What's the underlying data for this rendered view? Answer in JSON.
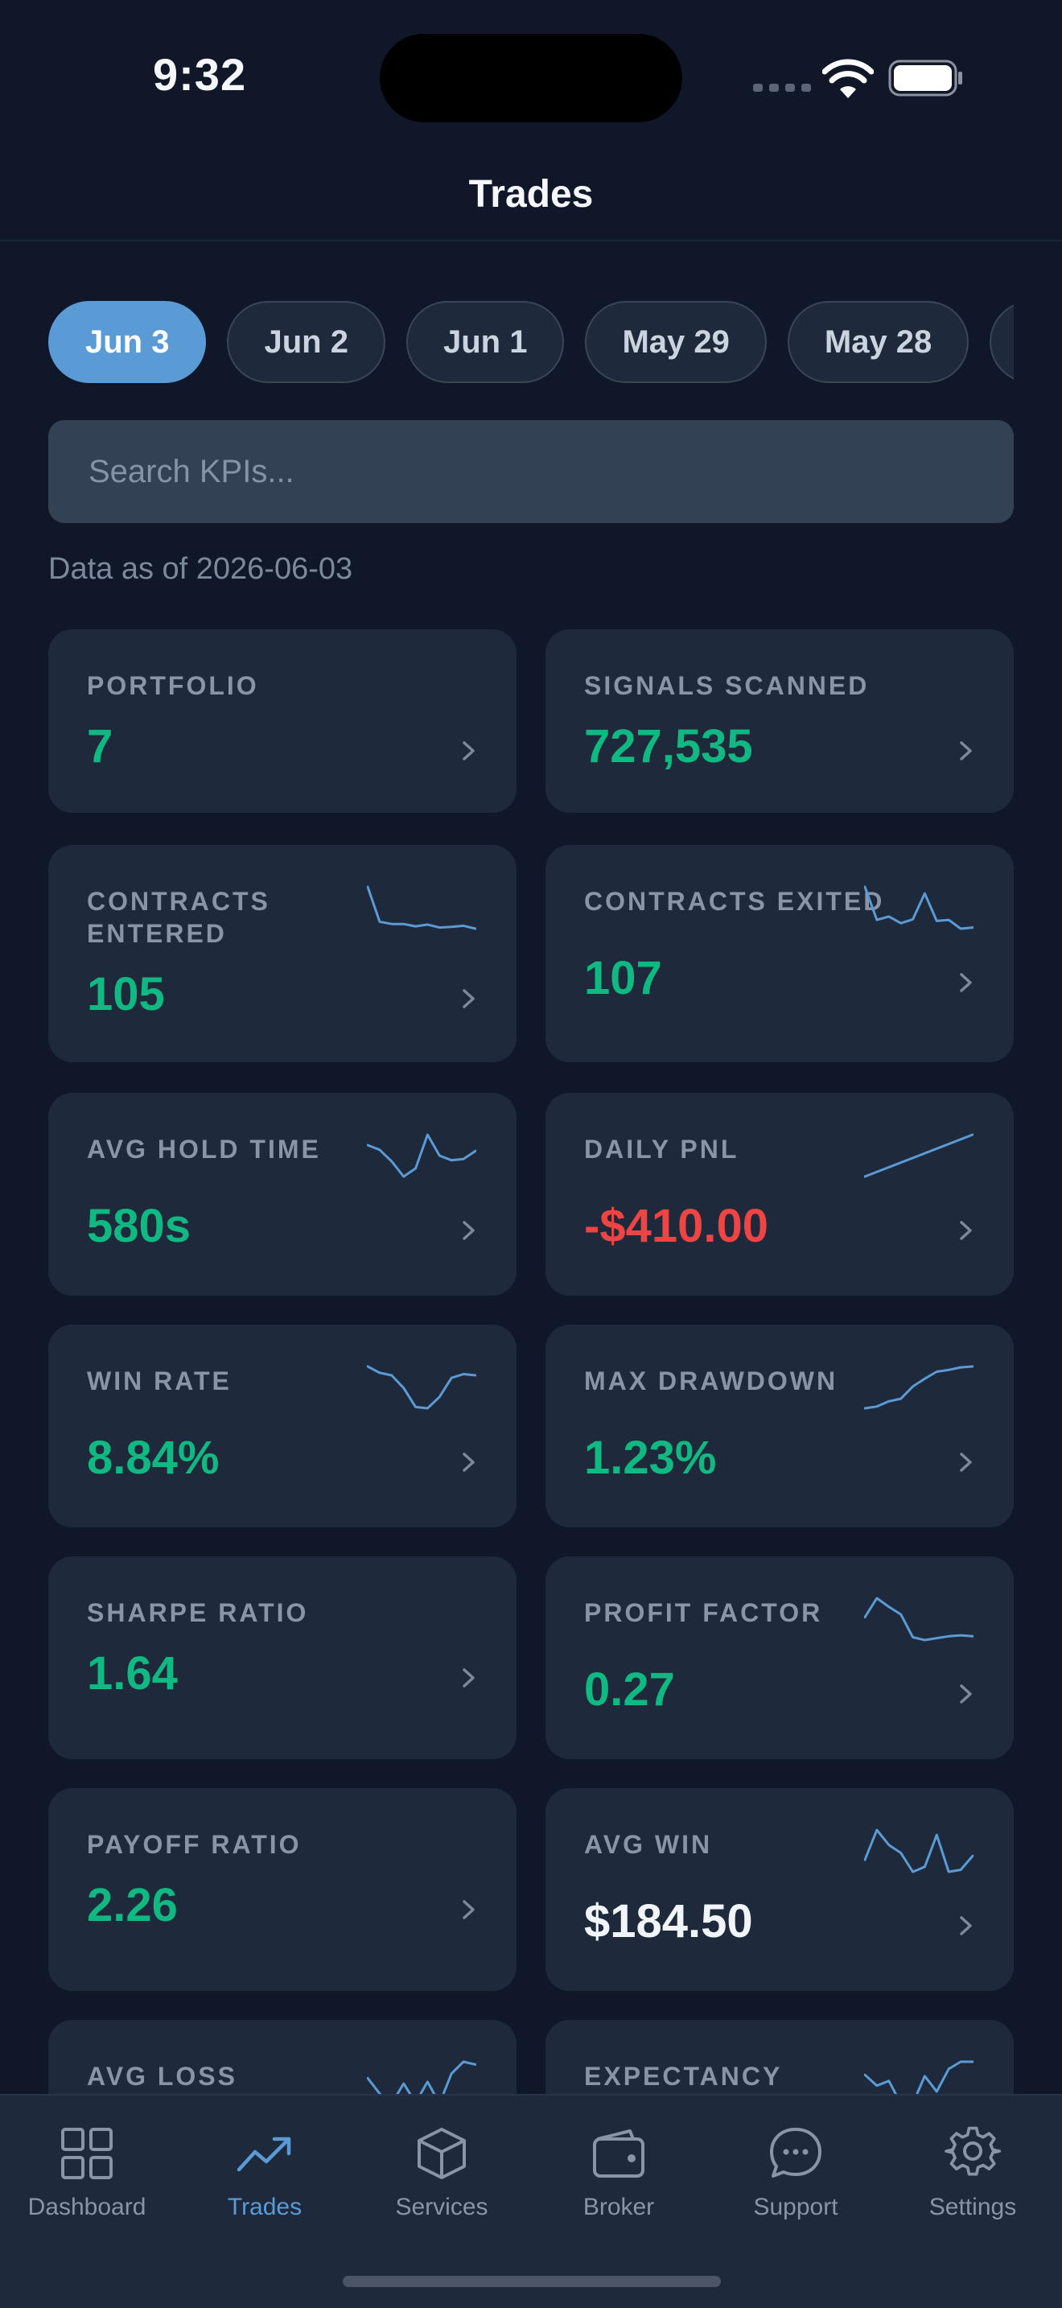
{
  "status_bar": {
    "time": "9:32"
  },
  "nav": {
    "title": "Trades"
  },
  "date_chips": [
    {
      "label": "Jun 3",
      "active": true
    },
    {
      "label": "Jun 2",
      "active": false
    },
    {
      "label": "Jun 1",
      "active": false
    },
    {
      "label": "May 29",
      "active": false
    },
    {
      "label": "May 28",
      "active": false
    },
    {
      "label": "",
      "active": false
    }
  ],
  "search": {
    "placeholder": "Search KPIs...",
    "value": ""
  },
  "data_as_of": "Data as of 2026-06-03",
  "kpis": [
    {
      "label": "PORTFOLIO",
      "value": "7",
      "tone": "positive",
      "sparkline": null
    },
    {
      "label": "SIGNALS SCANNED",
      "value": "727,535",
      "tone": "positive",
      "sparkline": null
    },
    {
      "label": "CONTRACTS ENTERED",
      "value": "105",
      "tone": "positive",
      "sparkline": [
        10,
        4,
        3.6,
        3.6,
        3.2,
        3.5,
        3.0,
        3.1,
        3.3,
        2.8
      ]
    },
    {
      "label": "CONTRACTS EXITED",
      "value": "107",
      "tone": "positive",
      "sparkline": [
        10,
        4,
        4.6,
        3.4,
        4.1,
        8.8,
        3.8,
        4.0,
        2.4,
        2.6
      ]
    },
    {
      "label": "AVG HOLD TIME",
      "value": "580s",
      "tone": "positive",
      "sparkline": [
        8.0,
        7.2,
        5.2,
        2.6,
        4.0,
        9.8,
        6.2,
        5.4,
        5.6,
        7.0
      ]
    },
    {
      "label": "DAILY PNL",
      "value": "-$410.00",
      "tone": "negative",
      "sparkline": [
        0,
        10
      ]
    },
    {
      "label": "WIN RATE",
      "value": "8.84%",
      "tone": "positive",
      "sparkline": [
        9.6,
        8.6,
        8.2,
        6.2,
        3.2,
        3.0,
        4.8,
        7.8,
        8.4,
        8.2
      ]
    },
    {
      "label": "MAX DRAWDOWN",
      "value": "1.23%",
      "tone": "positive",
      "sparkline": [
        0,
        0.4,
        1.6,
        2.2,
        5.0,
        6.8,
        8.4,
        8.8,
        9.4,
        9.6
      ]
    },
    {
      "label": "SHARPE RATIO",
      "value": "1.64",
      "tone": "positive",
      "sparkline": null
    },
    {
      "label": "PROFIT FACTOR",
      "value": "0.27",
      "tone": "positive",
      "sparkline": [
        6.0,
        10,
        8.2,
        6.6,
        1.8,
        1.2,
        1.6,
        2.0,
        2.2,
        2.0
      ]
    },
    {
      "label": "PAYOFF RATIO",
      "value": "2.26",
      "tone": "positive",
      "sparkline": null
    },
    {
      "label": "AVG WIN",
      "value": "$184.50",
      "tone": "neutral",
      "sparkline": [
        3.2,
        9.2,
        6.2,
        4.6,
        0.8,
        1.8,
        8.2,
        0.8,
        1.2,
        4.0
      ]
    },
    {
      "label": "AVG LOSS",
      "value": "",
      "tone": "positive",
      "sparkline": [
        6.0,
        2.6,
        0.4,
        4.8,
        0.6,
        5.2,
        0.4,
        7.0,
        9.6,
        9.0
      ]
    },
    {
      "label": "EXPECTANCY",
      "value": "",
      "tone": "positive",
      "sparkline": [
        6.6,
        4.8,
        5.6,
        1.8,
        1.8,
        6.4,
        3.8,
        7.6,
        8.8,
        8.8
      ]
    }
  ],
  "tabs": [
    {
      "label": "Dashboard",
      "icon": "grid-icon",
      "active": false
    },
    {
      "label": "Trades",
      "icon": "trend-up-icon",
      "active": true
    },
    {
      "label": "Services",
      "icon": "cube-icon",
      "active": false
    },
    {
      "label": "Broker",
      "icon": "wallet-icon",
      "active": false
    },
    {
      "label": "Support",
      "icon": "chat-bubble-icon",
      "active": false
    },
    {
      "label": "Settings",
      "icon": "gear-icon",
      "active": false
    }
  ],
  "colors": {
    "background": "#0f1729",
    "card": "#1e293b",
    "accent": "#5b9bd5",
    "positive": "#10b981",
    "negative": "#ef4444"
  }
}
